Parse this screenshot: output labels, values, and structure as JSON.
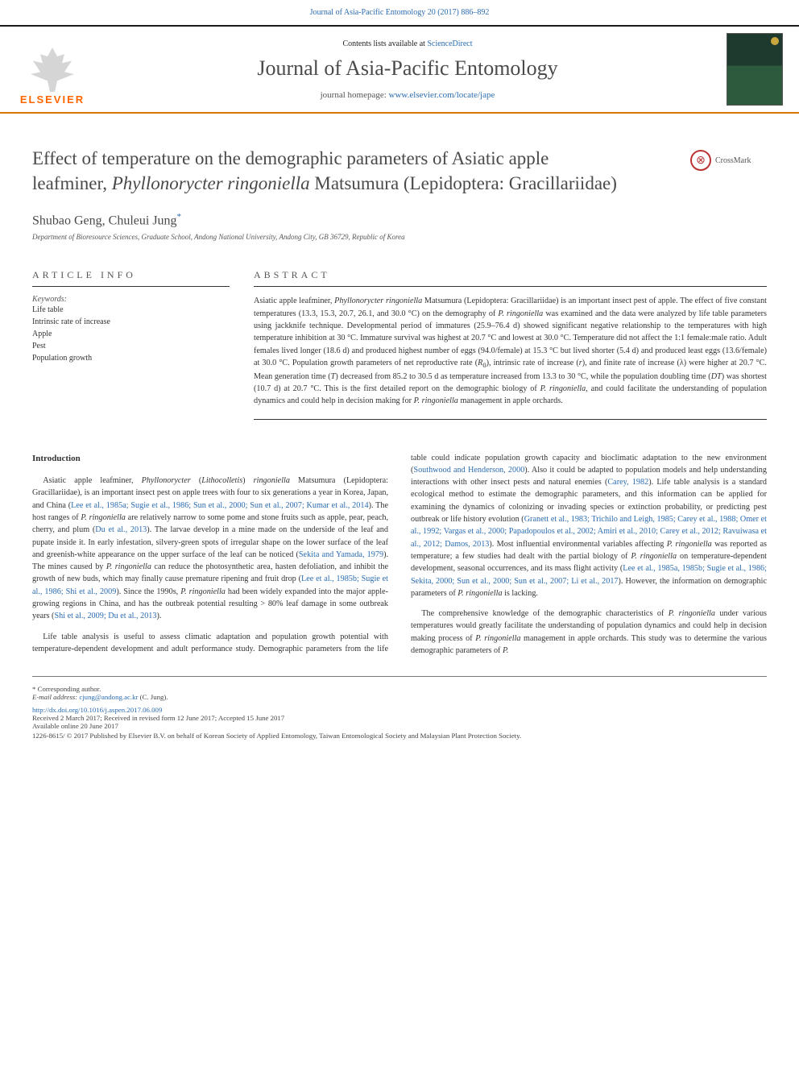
{
  "topBanner": {
    "text": "Journal of Asia-Pacific Entomology 20 (2017) 886–892",
    "href": "#"
  },
  "header": {
    "contentsPrefix": "Contents lists available at ",
    "contentsLink": "ScienceDirect",
    "journalName": "Journal of Asia-Pacific Entomology",
    "homepagePrefix": "journal homepage: ",
    "homepageLink": "www.elsevier.com/locate/jape",
    "elsevier": "ELSEVIER"
  },
  "title": {
    "line1": "Effect of temperature on the demographic parameters of Asiatic apple",
    "line2": "leafminer, ",
    "speciesItalic": "Phyllonorycter ringoniella",
    "line2End": " Matsumura (Lepidoptera: Gracillariidae)"
  },
  "crossmark": "CrossMark",
  "authors": {
    "names": "Shubao Geng, Chuleui Jung",
    "corrMark": "*"
  },
  "affiliation": "Department of Bioresource Sciences, Graduate School, Andong National University, Andong City, GB 36729, Republic of Korea",
  "articleInfo": {
    "heading": "ARTICLE INFO",
    "keywordsLabel": "Keywords:",
    "keywords": [
      "Life table",
      "Intrinsic rate of increase",
      "Apple",
      "Pest",
      "Population growth"
    ]
  },
  "abstract": {
    "heading": "ABSTRACT",
    "text": "Asiatic apple leafminer, <em>Phyllonorycter ringoniella</em> Matsumura (Lepidoptera: Gracillariidae) is an important insect pest of apple. The effect of five constant temperatures (13.3, 15.3, 20.7, 26.1, and 30.0 °C) on the demography of <em>P. ringoniella</em> was examined and the data were analyzed by life table parameters using jackknife technique. Developmental period of immatures (25.9–76.4 d) showed significant negative relationship to the temperatures with high temperature inhibition at 30 °C. Immature survival was highest at 20.7 °C and lowest at 30.0 °C. Temperature did not affect the 1:1 female:male ratio. Adult females lived longer (18.6 d) and produced highest number of eggs (94.0/female) at 15.3 °C but lived shorter (5.4 d) and produced least eggs (13.6/female) at 30.0 °C. Population growth parameters of net reproductive rate (<em>R</em><sub>0</sub>), intrinsic rate of increase (<em>r</em>), and finite rate of increase (λ) were higher at 20.7 °C. Mean generation time (<em>T</em>) decreased from 85.2 to 30.5 d as temperature increased from 13.3 to 30 °C, while the population doubling time (<em>DT</em>) was shortest (10.7 d) at 20.7 °C. This is the first detailed report on the demographic biology of <em>P. ringoniella</em>, and could facilitate the understanding of population dynamics and could help in decision making for <em>P. ringoniella</em> management in apple orchards."
  },
  "intro": {
    "heading": "Introduction",
    "p1": "Asiatic apple leafminer, <em>Phyllonorycter</em> (<em>Lithocolletis</em>) <em>ringoniella</em> Matsumura (Lepidoptera: Gracillariidae), is an important insect pest on apple trees with four to six generations a year in Korea, Japan, and China (<a href=\"#\">Lee et al., 1985a; Sugie et al., 1986; Sun et al., 2000; Sun et al., 2007; Kumar et al., 2014</a>). The host ranges of <em>P. ringoniella</em> are relatively narrow to some pome and stone fruits such as apple, pear, peach, cherry, and plum (<a href=\"#\">Du et al., 2013</a>). The larvae develop in a mine made on the underside of the leaf and pupate inside it. In early infestation, silvery-green spots of irregular shape on the lower surface of the leaf and greenish-white appearance on the upper surface of the leaf can be noticed (<a href=\"#\">Sekita and Yamada, 1979</a>). The mines caused by <em>P. ringoniella</em> can reduce the photosynthetic area, hasten defoliation, and inhibit the growth of new buds, which may finally cause premature ripening and fruit drop (<a href=\"#\">Lee et al., 1985b; Sugie et al., 1986; Shi et al., 2009</a>). Since the 1990s, <em>P. ringoniella</em> had been widely expanded into the major apple-growing regions in China, and has the outbreak potential resulting &gt; 80% leaf damage in some outbreak years (<a href=\"#\">Shi et al., 2009; Du et al., 2013</a>).",
    "p2": "Life table analysis is useful to assess climatic adaptation and population growth potential with temperature-dependent development and adult performance study. Demographic parameters from the life table could indicate population growth capacity and bioclimatic adaptation to the new environment (<a href=\"#\">Southwood and Henderson, 2000</a>). Also it could be adapted to population models and help understanding interactions with other insect pests and natural enemies (<a href=\"#\">Carey, 1982</a>). Life table analysis is a standard ecological method to estimate the demographic parameters, and this information can be applied for examining the dynamics of colonizing or invading species or extinction probability, or predicting pest outbreak or life history evolution (<a href=\"#\">Granett et al., 1983; Trichilo and Leigh, 1985; Carey et al., 1988; Omer et al., 1992; Vargas et al., 2000; Papadopoulos et al., 2002; Amiri et al., 2010; Carey et al., 2012; Ravuiwasa et al., 2012; Damos, 2013</a>). Most influential environmental variables affecting <em>P. ringoniella</em> was reported as temperature; a few studies had dealt with the partial biology of <em>P. ringoniella</em> on temperature-dependent development, seasonal occurrences, and its mass flight activity (<a href=\"#\">Lee et al., 1985a, 1985b; Sugie et al., 1986; Sekita, 2000; Sun et al., 2000; Sun et al., 2007; Li et al., 2017</a>). However, the information on demographic parameters of <em>P. ringoniella</em> is lacking.",
    "p3": "The comprehensive knowledge of the demographic characteristics of <em>P. ringoniella</em> under various temperatures would greatly facilitate the understanding of population dynamics and could help in decision making process of <em>P. ringoniella</em> management in apple orchards. This study was to determine the various demographic parameters of <em>P.</em>"
  },
  "footnotes": {
    "corr": "Corresponding author.",
    "emailLabel": "E-mail address:",
    "email": "cjung@andong.ac.kr",
    "emailSuffix": "(C. Jung)."
  },
  "doi": {
    "link": "http://dx.doi.org/10.1016/j.aspen.2017.06.009",
    "received": "Received 2 March 2017; Received in revised form 12 June 2017; Accepted 15 June 2017",
    "available": "Available online 20 June 2017"
  },
  "copyright": "1226-8615/ © 2017 Published by Elsevier B.V. on behalf of Korean Society of Applied Entomology, Taiwan Entomological Society and Malaysian Plant Protection Society."
}
